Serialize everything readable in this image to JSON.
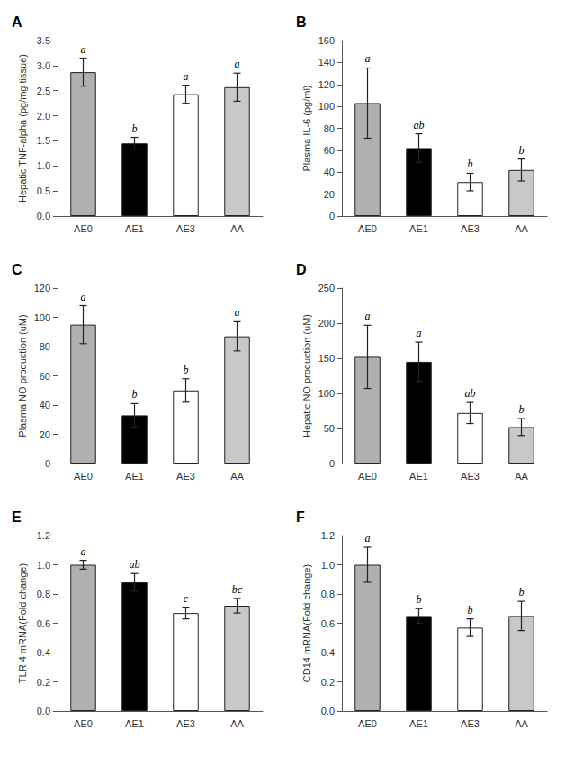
{
  "chart_data": [
    {
      "type": "bar",
      "title": "A",
      "ylabel": "Hepatic TNF-alpha (pg/mg tissue)",
      "categories": [
        "AE0",
        "AE1",
        "AE3",
        "AA"
      ],
      "values": [
        2.87,
        1.45,
        2.43,
        2.57
      ],
      "errors": [
        0.28,
        0.12,
        0.18,
        0.28
      ],
      "sig_labels": [
        "a",
        "b",
        "a",
        "a"
      ],
      "colors": [
        "#b0b0b0",
        "#000000",
        "#ffffff",
        "#c8c8c8"
      ],
      "ylim": [
        0,
        3.5
      ],
      "yticks": [
        {
          "value": 0.0,
          "label": "0.0"
        },
        0.5,
        {
          "value": 1.0,
          "label": "1.0"
        },
        1.5,
        {
          "value": 2.0,
          "label": "2.0"
        },
        2.5,
        {
          "value": 3.0,
          "label": "3.0"
        },
        3.5
      ],
      "grid": false
    },
    {
      "type": "bar",
      "title": "B",
      "ylabel": "Plasma IL-6 (pg/ml)",
      "categories": [
        "AE0",
        "AE1",
        "AE3",
        "AA"
      ],
      "values": [
        103,
        62,
        31,
        42
      ],
      "errors": [
        32,
        13,
        8,
        10
      ],
      "sig_labels": [
        "a",
        "ab",
        "b",
        "b"
      ],
      "colors": [
        "#b0b0b0",
        "#000000",
        "#ffffff",
        "#c8c8c8"
      ],
      "ylim": [
        0,
        160
      ],
      "yticks": [
        0,
        20,
        40,
        60,
        80,
        100,
        120,
        140,
        160
      ],
      "grid": false
    },
    {
      "type": "bar",
      "title": "C",
      "ylabel": "Plasma NO production (uM)",
      "categories": [
        "AE0",
        "AE1",
        "AE3",
        "AA"
      ],
      "values": [
        95,
        33,
        50,
        87
      ],
      "errors": [
        13,
        8,
        8,
        10
      ],
      "sig_labels": [
        "a",
        "b",
        "b",
        "a"
      ],
      "colors": [
        "#b0b0b0",
        "#000000",
        "#ffffff",
        "#c8c8c8"
      ],
      "ylim": [
        0,
        120
      ],
      "yticks": [
        0,
        20,
        40,
        60,
        80,
        100,
        120
      ],
      "grid": false
    },
    {
      "type": "bar",
      "title": "D",
      "ylabel": "Hepatic NO production (uM)",
      "categories": [
        "AE0",
        "AE1",
        "AE3",
        "AA"
      ],
      "values": [
        152,
        145,
        72,
        52
      ],
      "errors": [
        45,
        28,
        15,
        12
      ],
      "sig_labels": [
        "a",
        "a",
        "ab",
        "b"
      ],
      "colors": [
        "#b0b0b0",
        "#000000",
        "#ffffff",
        "#c8c8c8"
      ],
      "ylim": [
        0,
        250
      ],
      "yticks": [
        0,
        50,
        100,
        150,
        200,
        250
      ],
      "grid": false
    },
    {
      "type": "bar",
      "title": "E",
      "ylabel": "TLR 4 mRNA(Fold change)",
      "categories": [
        "AE0",
        "AE1",
        "AE3",
        "AA"
      ],
      "values": [
        1.0,
        0.88,
        0.67,
        0.72
      ],
      "errors": [
        0.03,
        0.06,
        0.04,
        0.05
      ],
      "sig_labels": [
        "a",
        "ab",
        "c",
        "bc"
      ],
      "colors": [
        "#b0b0b0",
        "#000000",
        "#ffffff",
        "#c8c8c8"
      ],
      "ylim": [
        0,
        1.2
      ],
      "yticks": [
        {
          "value": 0.0,
          "label": "0.0"
        },
        0.2,
        0.4,
        0.6,
        0.8,
        {
          "value": 1.0,
          "label": "1.0"
        },
        1.2
      ],
      "grid": false
    },
    {
      "type": "bar",
      "title": "F",
      "ylabel": "CD14 mRNA(Fold change)",
      "categories": [
        "AE0",
        "AE1",
        "AE3",
        "AA"
      ],
      "values": [
        1.0,
        0.65,
        0.57,
        0.65
      ],
      "errors": [
        0.12,
        0.05,
        0.06,
        0.1
      ],
      "sig_labels": [
        "a",
        "b",
        "b",
        "b"
      ],
      "colors": [
        "#b0b0b0",
        "#000000",
        "#ffffff",
        "#c8c8c8"
      ],
      "ylim": [
        0,
        1.2
      ],
      "yticks": [
        {
          "value": 0.0,
          "label": "0.0"
        },
        0.2,
        0.4,
        0.6,
        0.8,
        {
          "value": 1.0,
          "label": "1.0"
        },
        1.2
      ],
      "grid": false
    }
  ]
}
